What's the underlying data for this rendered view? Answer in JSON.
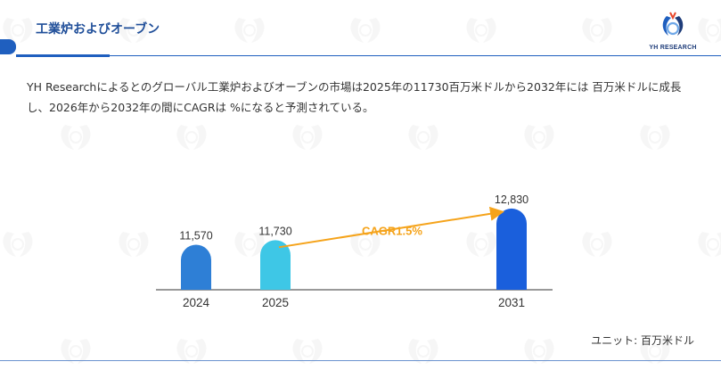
{
  "header": {
    "title": "工業炉およびオーブン",
    "logo_text": "YH RESEARCH"
  },
  "description": "YH Researchによるとのグローバル工業炉およびオーブンの市場は2025年の11730百万米ドルから2032年には 百万米ドルに成長し、2026年から2032年の間にCAGRは %になると予測されている。",
  "chart_data": {
    "type": "bar",
    "categories": [
      "2024",
      "2025",
      "2031"
    ],
    "values": [
      11570,
      11730,
      12830
    ],
    "value_labels": [
      "11,570",
      "11,730",
      "12,830"
    ],
    "bar_colors": [
      "#2e7fd6",
      "#3ec7e6",
      "#1a5fdc"
    ],
    "annotation": "CAGR1.5%",
    "annotation_color": "#f5a31a",
    "ylim": [
      0,
      14000
    ],
    "grid": false,
    "legend": "none"
  },
  "unit_label": "ユニット: 百万米ドル",
  "colors": {
    "accent": "#1f5fbf",
    "title": "#1f4e99"
  }
}
